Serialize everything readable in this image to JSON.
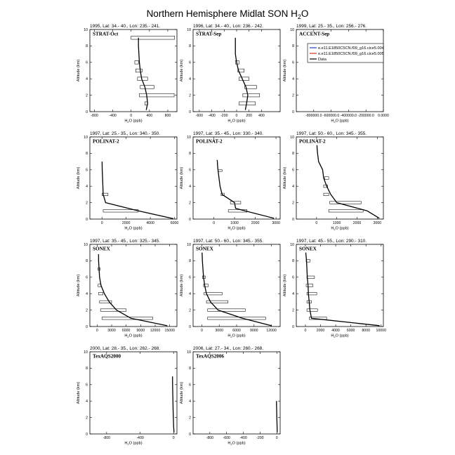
{
  "figure": {
    "title": "Northern Hemisphere Midlat SON H",
    "title_subscript": "2",
    "title_suffix": "O"
  },
  "legend": {
    "entries": [
      {
        "label": "e.e11.E1850C5CN.f09_g16.cice5.004",
        "color": "#1f3fbf"
      },
      {
        "label": "e.e11.E1850C5CN.f09_g16.cice5.005",
        "color": "#d4301f"
      },
      {
        "label": "Data",
        "color": "#000000"
      }
    ]
  },
  "colors": {
    "data_line": "#000000",
    "model_1": "#1f3fbf",
    "model_2": "#d4301f",
    "box": "#000000"
  },
  "chart_data": [
    {
      "type": "line",
      "label": "STRAT-Oct",
      "subtitle": "1995, Lat: 34.- 40., Lon: 235.- 241.",
      "xlabel": "H2O (ppb)",
      "ylabel": "Altitude (km)",
      "xlim": [
        -900,
        1000
      ],
      "ylim": [
        0,
        10
      ],
      "xticks": [
        -800,
        -400,
        0,
        400,
        800
      ],
      "xticklabels": [
        "-800",
        "-400",
        "0",
        "400",
        "800"
      ],
      "yticks": [
        0,
        2,
        4,
        6,
        8,
        10
      ],
      "series": [
        {
          "x": [
            330,
            360,
            340,
            300,
            230,
            200,
            180,
            170,
            160,
            160
          ],
          "y": [
            0.2,
            1,
            2,
            3,
            4,
            5,
            6,
            7,
            8,
            9
          ]
        }
      ],
      "boxes": [
        [
          300,
          360,
          0.8,
          1.2
        ],
        [
          180,
          940,
          1.8,
          2.2
        ],
        [
          200,
          500,
          2.8,
          3.2
        ],
        [
          140,
          360,
          3.8,
          4.2
        ],
        [
          100,
          240,
          4.8,
          5.2
        ],
        [
          80,
          160,
          5.8,
          6.2
        ],
        [
          0,
          950,
          8.8,
          9.2
        ]
      ]
    },
    {
      "type": "line",
      "label": "STRAT-Sep",
      "subtitle": "1996, Lat: 34.- 40., Lon: 236.- 242.",
      "xlabel": "H2O (ppb)",
      "ylabel": "Altitude (km)",
      "xlim": [
        -700,
        700
      ],
      "ylim": [
        0,
        10
      ],
      "xticks": [
        -600,
        -400,
        -200,
        0,
        200,
        400
      ],
      "xticklabels": [
        "-600",
        "-400",
        "-200",
        "0",
        "200",
        "400"
      ],
      "yticks": [
        0,
        2,
        4,
        6,
        8,
        10
      ],
      "series": [
        {
          "x": [
            140,
            160,
            180,
            150,
            90,
            30,
            0,
            -20,
            -20,
            -20
          ],
          "y": [
            0.2,
            1,
            2,
            3,
            4,
            5,
            6,
            7,
            8,
            9
          ]
        }
      ],
      "boxes": [
        [
          40,
          300,
          0.8,
          1.2
        ],
        [
          100,
          370,
          1.8,
          2.2
        ],
        [
          130,
          320,
          2.8,
          3.2
        ],
        [
          40,
          200,
          3.8,
          4.2
        ],
        [
          20,
          120,
          4.8,
          5.2
        ],
        [
          -20,
          40,
          5.8,
          6.2
        ]
      ]
    },
    {
      "type": "line",
      "label": "ACCENT-Sep",
      "subtitle": "1999, Lat: 25.- 35., Lon: 256.- 276.",
      "xlabel": "H2O (ppb)",
      "ylabel": "Altitude (km)",
      "xlim": [
        -1000000,
        0
      ],
      "ylim": [
        0,
        10
      ],
      "xticks": [
        -800000,
        -600000,
        -400000,
        -200000,
        0
      ],
      "xticklabels": [
        "-800000.0",
        "-600000.0",
        "-400000.0",
        "-200000.0",
        "0.0000"
      ],
      "yticks": [
        0,
        2,
        4,
        6,
        8,
        10
      ],
      "series": [],
      "boxes": [],
      "has_legend": true
    },
    {
      "type": "line",
      "label": "POLINAT-2",
      "subtitle": "1997, Lat: 25.- 35., Lon: 340.- 350.",
      "xlabel": "H2O (ppb)",
      "ylabel": "Altitude (km)",
      "xlim": [
        -1000,
        6200
      ],
      "ylim": [
        0,
        10
      ],
      "xticks": [
        0,
        2000,
        4000,
        6000
      ],
      "xticklabels": [
        "0",
        "2000",
        "4000",
        "6000"
      ],
      "yticks": [
        0,
        2,
        4,
        6,
        8,
        10
      ],
      "series": [
        {
          "x": [
            5900,
            3000,
            300,
            100,
            50,
            20,
            10
          ],
          "y": [
            0.05,
            1,
            2,
            3,
            5,
            6,
            7
          ]
        }
      ],
      "boxes": [
        [
          100,
          3000,
          0.85,
          1.15
        ],
        [
          20,
          500,
          2.85,
          3.15
        ]
      ]
    },
    {
      "type": "line",
      "label": "POLINAT-2",
      "subtitle": "1997, Lat: 35.- 45., Lon: 330.- 340.",
      "xlabel": "H2O (ppb)",
      "ylabel": "Altitude (km)",
      "xlim": [
        -1000,
        3200
      ],
      "ylim": [
        0,
        10
      ],
      "xticks": [
        0,
        1000,
        2000,
        3000
      ],
      "xticklabels": [
        "0",
        "1000",
        "2000",
        "3000"
      ],
      "yticks": [
        0,
        2,
        4,
        6,
        8,
        10
      ],
      "series": [
        {
          "x": [
            2900,
            1500,
            1050,
            1000,
            400,
            300,
            250,
            200,
            180,
            170,
            160
          ],
          "y": [
            0.1,
            1,
            1.3,
            2,
            3,
            4,
            5,
            6,
            6.5,
            7,
            7.2
          ]
        }
      ],
      "boxes": [
        [
          700,
          1600,
          0.85,
          1.15
        ],
        [
          800,
          1300,
          1.85,
          2.15
        ],
        [
          350,
          500,
          2.85,
          3.15
        ],
        [
          200,
          400,
          5.8,
          6.0
        ]
      ]
    },
    {
      "type": "line",
      "label": "POLINAT-2",
      "subtitle": "1997, Lat: 50.- 60., Lon: 345.- 355.",
      "xlabel": "H2O (ppb)",
      "ylabel": "Altitude (km)",
      "xlim": [
        -1000,
        3300
      ],
      "ylim": [
        0,
        10
      ],
      "xticks": [
        0,
        1000,
        2000,
        3000
      ],
      "xticklabels": [
        "0",
        "1000",
        "2000",
        "3000"
      ],
      "yticks": [
        0,
        2,
        4,
        6,
        8,
        10
      ],
      "series": [
        {
          "x": [
            3100,
            2500,
            1000,
            700,
            500,
            350,
            300,
            200,
            100,
            50,
            30,
            20
          ],
          "y": [
            0.1,
            1,
            2,
            3,
            4,
            5,
            6,
            6.5,
            7,
            8,
            8.5,
            9
          ]
        }
      ],
      "boxes": [
        [
          600,
          2300,
          0.85,
          1.15
        ],
        [
          650,
          2200,
          1.85,
          2.15
        ],
        [
          350,
          600,
          2.85,
          3.15
        ],
        [
          350,
          550,
          3.85,
          4.15
        ],
        [
          400,
          600,
          4.85,
          5.15
        ]
      ]
    },
    {
      "type": "line",
      "label": "SONEX",
      "subtitle": "1997, Lat: 35.- 45., Lon: 325.- 345.",
      "xlabel": "H2O (ppb)",
      "ylabel": "Altitude (km)",
      "xlim": [
        -1500,
        16500
      ],
      "ylim": [
        0,
        10
      ],
      "xticks": [
        0,
        3000,
        6000,
        9000,
        12000,
        15000
      ],
      "xticklabels": [
        "0",
        "3000",
        "6000",
        "9000",
        "12000",
        "15000"
      ],
      "yticks": [
        0,
        2,
        4,
        6,
        8,
        10
      ],
      "series": [
        {
          "x": [
            14500,
            7000,
            4000,
            2500,
            1500,
            800,
            500,
            400,
            300,
            300
          ],
          "y": [
            0.1,
            1,
            2,
            3,
            4,
            5,
            6,
            7,
            8,
            8.8
          ]
        }
      ],
      "boxes": [
        [
          1000,
          11500,
          0.85,
          1.15
        ],
        [
          700,
          6000,
          1.85,
          2.15
        ],
        [
          500,
          3000,
          2.85,
          3.15
        ],
        [
          300,
          1200,
          3.85,
          4.15
        ],
        [
          200,
          800,
          4.85,
          5.15
        ],
        [
          200,
          600,
          6.85,
          7.15
        ]
      ]
    },
    {
      "type": "line",
      "label": "SONEX",
      "subtitle": "1997, Lat: 50.- 60., Lon: 345.- 355.",
      "xlabel": "H2O (ppb)",
      "ylabel": "Altitude (km)",
      "xlim": [
        -1500,
        13500
      ],
      "ylim": [
        0,
        10
      ],
      "xticks": [
        0,
        3000,
        6000,
        9000,
        12000
      ],
      "xticklabels": [
        "0",
        "3000",
        "6000",
        "9000",
        "12000"
      ],
      "yticks": [
        0,
        2,
        4,
        6,
        8,
        10
      ],
      "series": [
        {
          "x": [
            12000,
            7000,
            2800,
            1500,
            800,
            500,
            300,
            200,
            100,
            50
          ],
          "y": [
            0.1,
            1,
            2,
            3,
            4,
            5,
            6,
            7,
            8,
            9
          ]
        }
      ],
      "boxes": [
        [
          1000,
          11000,
          0.85,
          1.15
        ],
        [
          1000,
          7500,
          1.85,
          2.15
        ],
        [
          800,
          4500,
          2.85,
          3.15
        ],
        [
          400,
          3500,
          3.85,
          4.15
        ],
        [
          300,
          1100,
          4.85,
          5.15
        ],
        [
          100,
          600,
          5.85,
          6.15
        ]
      ]
    },
    {
      "type": "line",
      "label": "SONEX",
      "subtitle": "1997, Lat: 45.- 55., Lon: 290.- 310.",
      "xlabel": "H2O (ppb)",
      "ylabel": "Altitude (km)",
      "xlim": [
        -1200,
        10300
      ],
      "ylim": [
        0,
        10
      ],
      "xticks": [
        0,
        2000,
        4000,
        6000,
        8000,
        10000
      ],
      "xticklabels": [
        "0",
        "2000",
        "4000",
        "6000",
        "8000",
        "10000"
      ],
      "yticks": [
        0,
        2,
        4,
        6,
        8,
        10
      ],
      "series": [
        {
          "x": [
            9800,
            800,
            600,
            500,
            400,
            350,
            250,
            200,
            150,
            100,
            50
          ],
          "y": [
            0.1,
            1,
            2,
            3,
            4,
            5,
            6,
            7,
            8,
            8.5,
            9
          ]
        }
      ],
      "boxes": [
        [
          500,
          2800,
          0.85,
          1.15
        ],
        [
          200,
          1600,
          1.85,
          2.15
        ],
        [
          200,
          800,
          2.85,
          3.15
        ],
        [
          200,
          1500,
          3.85,
          4.15
        ],
        [
          100,
          1000,
          4.85,
          5.15
        ],
        [
          200,
          1200,
          5.85,
          6.15
        ],
        [
          100,
          600,
          7.85,
          8.15
        ]
      ]
    },
    {
      "type": "line",
      "label": "TexAQS2000",
      "subtitle": "2000, Lat: 28.- 35., Lon: 262.- 268.",
      "xlabel": "H2O (ppb)",
      "ylabel": "Altitude (km)",
      "xlim": [
        -1000,
        40
      ],
      "ylim": [
        0,
        10
      ],
      "xticks": [
        -800,
        -400,
        0
      ],
      "xticklabels": [
        "-800",
        "-400",
        "0"
      ],
      "yticks": [
        0,
        2,
        4,
        6,
        8,
        10
      ],
      "series": [
        {
          "x": [
            5,
            0,
            -3,
            -6,
            -8,
            -10,
            -12,
            -13
          ],
          "y": [
            0.2,
            1,
            2,
            3,
            4,
            5,
            6,
            7
          ]
        }
      ],
      "boxes": []
    },
    {
      "type": "line",
      "label": "TexAQS2006",
      "subtitle": "2006, Lat: 27.- 34., Lon: 260.- 268.",
      "xlabel": "H2O (ppb)",
      "ylabel": "Altitude (km)",
      "xlim": [
        -1000,
        40
      ],
      "ylim": [
        0,
        10
      ],
      "xticks": [
        -800,
        -600,
        -400,
        -200,
        0
      ],
      "xticklabels": [
        "-800",
        "-600",
        "-400",
        "-200",
        "0"
      ],
      "yticks": [
        0,
        2,
        4,
        6,
        8,
        10
      ],
      "series": [
        {
          "x": [
            5,
            3,
            0,
            -2,
            -4
          ],
          "y": [
            0.2,
            1,
            2,
            3,
            4
          ]
        }
      ],
      "boxes": []
    }
  ]
}
